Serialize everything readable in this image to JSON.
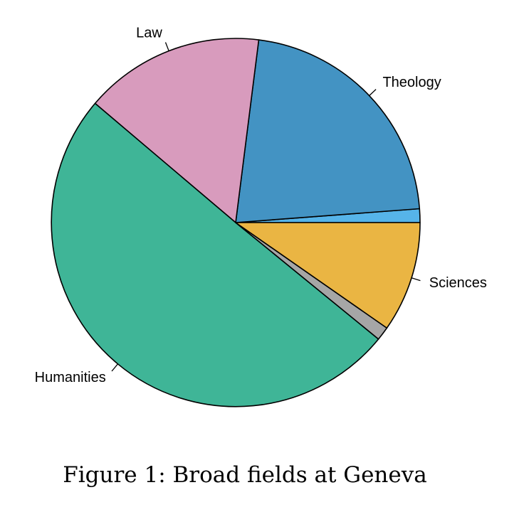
{
  "chart_data": {
    "type": "pie",
    "title": "",
    "start_angle_deg": 0,
    "direction": "counterclockwise",
    "slices": [
      {
        "label": "",
        "value": 1.2,
        "color": "#56B4E9"
      },
      {
        "label": "Theology",
        "value": 21.8,
        "color": "#4393C3"
      },
      {
        "label": "Law",
        "value": 15.8,
        "color": "#D89BBD"
      },
      {
        "label": "Humanities",
        "value": 50.3,
        "color": "#3FB597"
      },
      {
        "label": "",
        "value": 1.2,
        "color": "#A6A6A6"
      },
      {
        "label": "Sciences",
        "value": 9.7,
        "color": "#EAB543"
      }
    ]
  },
  "caption": "Figure 1: Broad fields at Geneva"
}
